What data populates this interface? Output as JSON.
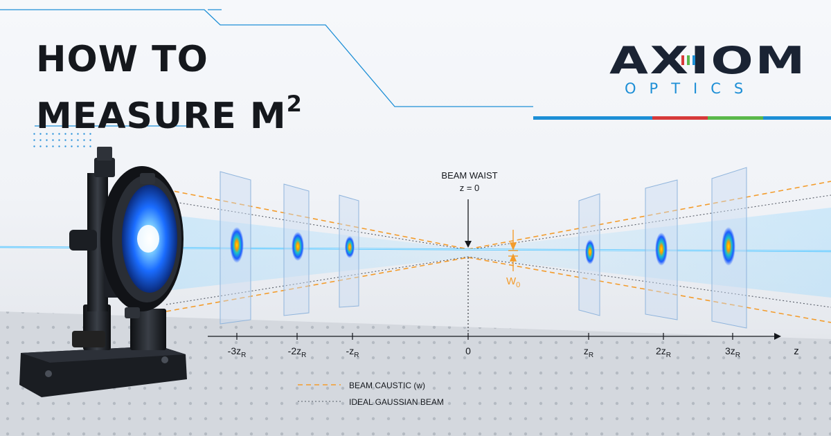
{
  "title": {
    "line1": "HOW TO",
    "line2": "MEASURE M",
    "sup": "2"
  },
  "logo": {
    "brand": "AXIOM",
    "tagline": "OPTICS"
  },
  "diagram": {
    "waist_label": "BEAM WAIST",
    "waist_position": "z = 0",
    "waist_radius_label": "W",
    "waist_radius_sub": "0",
    "axis_label": "z",
    "ticks": [
      {
        "text": "-3z",
        "sub": "R"
      },
      {
        "text": "-2z",
        "sub": "R"
      },
      {
        "text": "-z",
        "sub": "R"
      },
      {
        "text": "0",
        "sub": ""
      },
      {
        "text": "z",
        "sub": "R"
      },
      {
        "text": "2z",
        "sub": "R"
      },
      {
        "text": "3z",
        "sub": "R"
      }
    ],
    "legend": [
      {
        "label": "BEAM CAUSTIC (w)",
        "style": "dashed",
        "color": "#f39c2c"
      },
      {
        "label": "IDEAL GAUSSIAN BEAM",
        "style": "dotted",
        "color": "#555b66"
      }
    ]
  },
  "colors": {
    "accent_blue": "#1d8fd6",
    "stripe_red": "#d63a3a",
    "stripe_green": "#5ab84a",
    "beam": "#4fc3ff",
    "caustic": "#f39c2c"
  }
}
